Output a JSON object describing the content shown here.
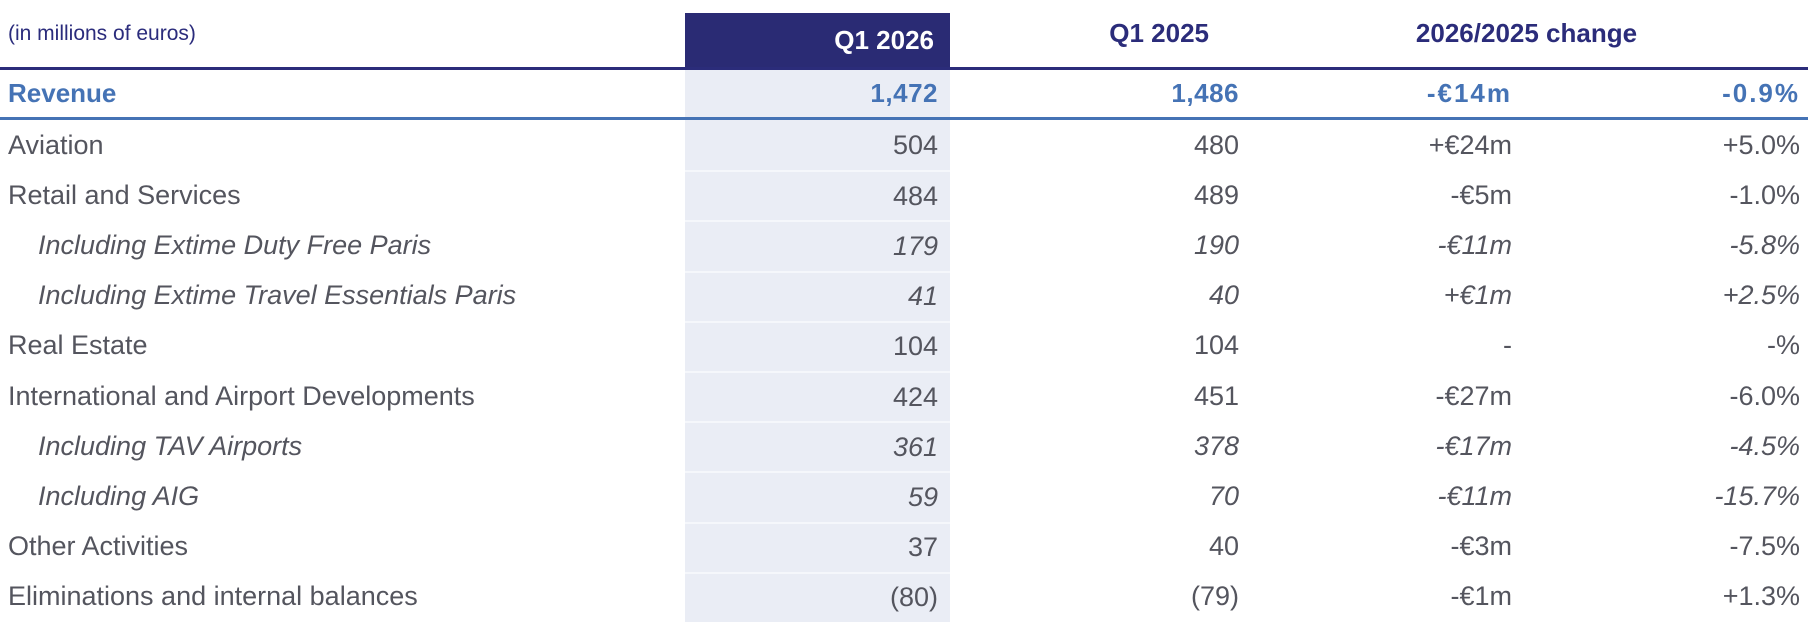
{
  "meta": {
    "unit_label": "(in millions of euros)"
  },
  "colors": {
    "header_navy": "#2a2b74",
    "accent_blue": "#4573b5",
    "shaded_column": "#eaedf5",
    "label_gray": "#54555e"
  },
  "header": {
    "col_q1_2026": "Q1 2026",
    "col_q1_2025": "Q1 2025",
    "col_change": "2026/2025 change"
  },
  "table": {
    "rows": [
      {
        "label": "Revenue",
        "q1_2026": "1,472",
        "q1_2025": "1,486",
        "change_abs": "-€14m",
        "change_pct": "-0.9%"
      },
      {
        "label": "Aviation",
        "q1_2026": "504",
        "q1_2025": "480",
        "change_abs": "+€24m",
        "change_pct": "+5.0%"
      },
      {
        "label": "Retail and Services",
        "q1_2026": "484",
        "q1_2025": "489",
        "change_abs": "-€5m",
        "change_pct": "-1.0%"
      },
      {
        "label": "Including Extime Duty Free Paris",
        "q1_2026": "179",
        "q1_2025": "190",
        "change_abs": "-€11m",
        "change_pct": "-5.8%"
      },
      {
        "label": "Including Extime Travel Essentials Paris",
        "q1_2026": "41",
        "q1_2025": "40",
        "change_abs": "+€1m",
        "change_pct": "+2.5%"
      },
      {
        "label": "Real Estate",
        "q1_2026": "104",
        "q1_2025": "104",
        "change_abs": "-",
        "change_pct": "-%"
      },
      {
        "label": "International and Airport Developments",
        "q1_2026": "424",
        "q1_2025": "451",
        "change_abs": "-€27m",
        "change_pct": "-6.0%"
      },
      {
        "label": "Including TAV Airports",
        "q1_2026": "361",
        "q1_2025": "378",
        "change_abs": "-€17m",
        "change_pct": "-4.5%"
      },
      {
        "label": "Including AIG",
        "q1_2026": "59",
        "q1_2025": "70",
        "change_abs": "-€11m",
        "change_pct": "-15.7%"
      },
      {
        "label": "Other Activities",
        "q1_2026": "37",
        "q1_2025": "40",
        "change_abs": "-€3m",
        "change_pct": "-7.5%"
      },
      {
        "label": "Eliminations and internal balances",
        "q1_2026": "(80)",
        "q1_2025": "(79)",
        "change_abs": "-€1m",
        "change_pct": "+1.3%"
      }
    ]
  }
}
